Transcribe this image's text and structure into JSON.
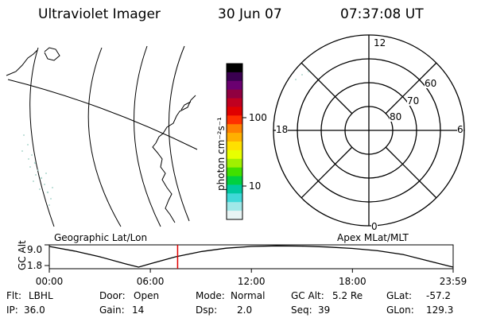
{
  "header": {
    "title": "Ultraviolet Imager",
    "date": "30 Jun 07",
    "time": "07:37:08 UT"
  },
  "colorbar": {
    "label": "photon cm⁻²s⁻¹",
    "ticks": [
      "100",
      "10"
    ],
    "colors": [
      "#000000",
      "#3a0050",
      "#6a0070",
      "#900040",
      "#c00020",
      "#e00000",
      "#ff3000",
      "#ff8000",
      "#ffb000",
      "#ffe000",
      "#e8ff00",
      "#a0f000",
      "#40e000",
      "#00d040",
      "#00c8a0",
      "#40d8d8",
      "#a0e8e8",
      "#e8f4f4"
    ]
  },
  "polar": {
    "mlt_labels": {
      "top": "12",
      "left": "18",
      "right": "6",
      "bottom": "0"
    },
    "lat_labels": [
      "60",
      "70",
      "80"
    ]
  },
  "timeline": {
    "left_label": "Geographic Lat/Lon",
    "right_label": "Apex MLat/MLT",
    "ylabel": "GC Alt",
    "ytick_top": "9.0",
    "ytick_bottom": "1.8",
    "xticks": [
      "00:00",
      "06:00",
      "12:00",
      "18:00",
      "23:59"
    ],
    "marker_color": "#e00000"
  },
  "chart_data": {
    "type": "line",
    "title": "",
    "xlabel": "",
    "ylabel": "GC Alt",
    "x": [
      0,
      1.5,
      3,
      4.5,
      5.3,
      6,
      7.5,
      9,
      10.5,
      12,
      13.5,
      15,
      16.5,
      18,
      19.5,
      21,
      22.5,
      23.98
    ],
    "series": [
      {
        "values": [
          9.0,
          7.4,
          5.4,
          3.0,
          1.8,
          3.0,
          5.4,
          7.2,
          8.4,
          9.0,
          9.2,
          9.1,
          8.8,
          8.3,
          7.5,
          6.2,
          4.0,
          1.8
        ]
      }
    ],
    "ylim": [
      1.8,
      9.0
    ],
    "xlim": [
      0,
      23.98
    ],
    "marker_time": 7.62
  },
  "status": {
    "flt_label": "Flt:",
    "flt_value": "LBHL",
    "ip_label": "IP:",
    "ip_value": "36.0",
    "door_label": "Door:",
    "door_value": "Open",
    "gain_label": "Gain:",
    "gain_value": "14",
    "mode_label": "Mode:",
    "mode_value": "Normal",
    "dsp_label": "Dsp:",
    "dsp_value": "2.0",
    "gcalt_label": "GC Alt:",
    "gcalt_value": "5.2 Re",
    "seq_label": "Seq:",
    "seq_value": "39",
    "glat_label": "GLat:",
    "glat_value": "-57.2",
    "glon_label": "GLon:",
    "glon_value": "129.3"
  }
}
